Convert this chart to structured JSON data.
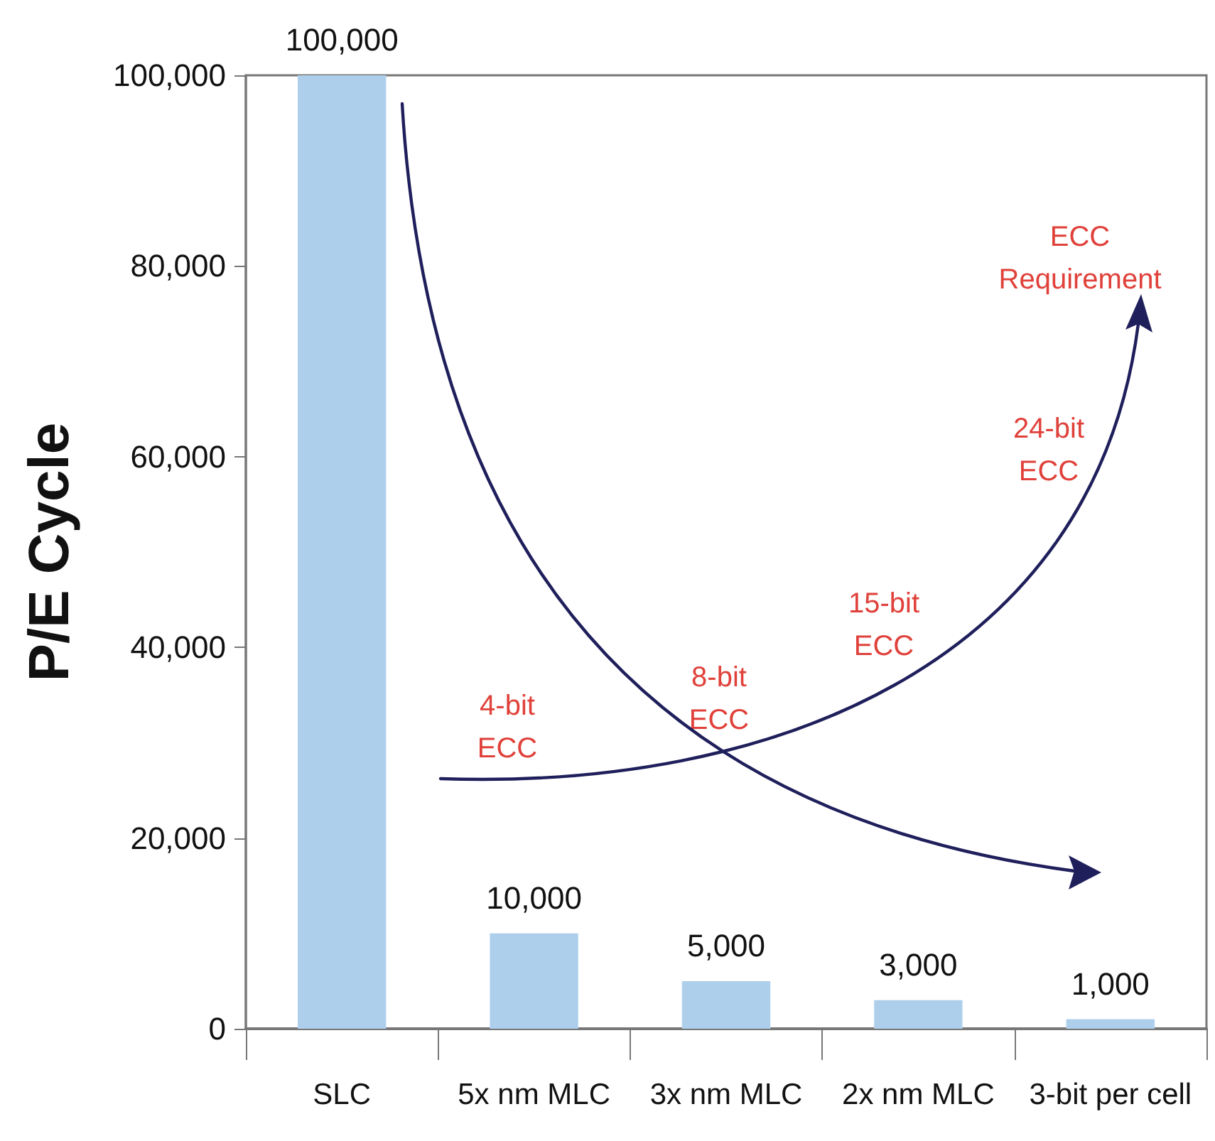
{
  "chart_data": {
    "type": "bar",
    "ylabel": "P/E Cycle",
    "categories": [
      "SLC",
      "5x nm MLC",
      "3x nm MLC",
      "2x nm MLC",
      "3-bit per cell"
    ],
    "values": [
      100000,
      10000,
      5000,
      3000,
      1000
    ],
    "color": "#aecfec",
    "value_labels": [
      "100,000",
      "10,000",
      "5,000",
      "3,000",
      "1,000"
    ],
    "ylim": [
      0,
      100000
    ],
    "yticks": [
      0,
      {
        "value": 20000,
        "label": "20,000"
      },
      {
        "value": 40000,
        "label": "40,000"
      },
      {
        "value": 60000,
        "label": "60,000"
      },
      {
        "value": 80000,
        "label": "80,000"
      },
      {
        "value": 100000,
        "label": "100,000"
      }
    ],
    "annotations": [
      "ECC Requirement",
      "24-bit ECC",
      "15-bit ECC",
      "8-bit ECC",
      "4-bit ECC"
    ]
  }
}
